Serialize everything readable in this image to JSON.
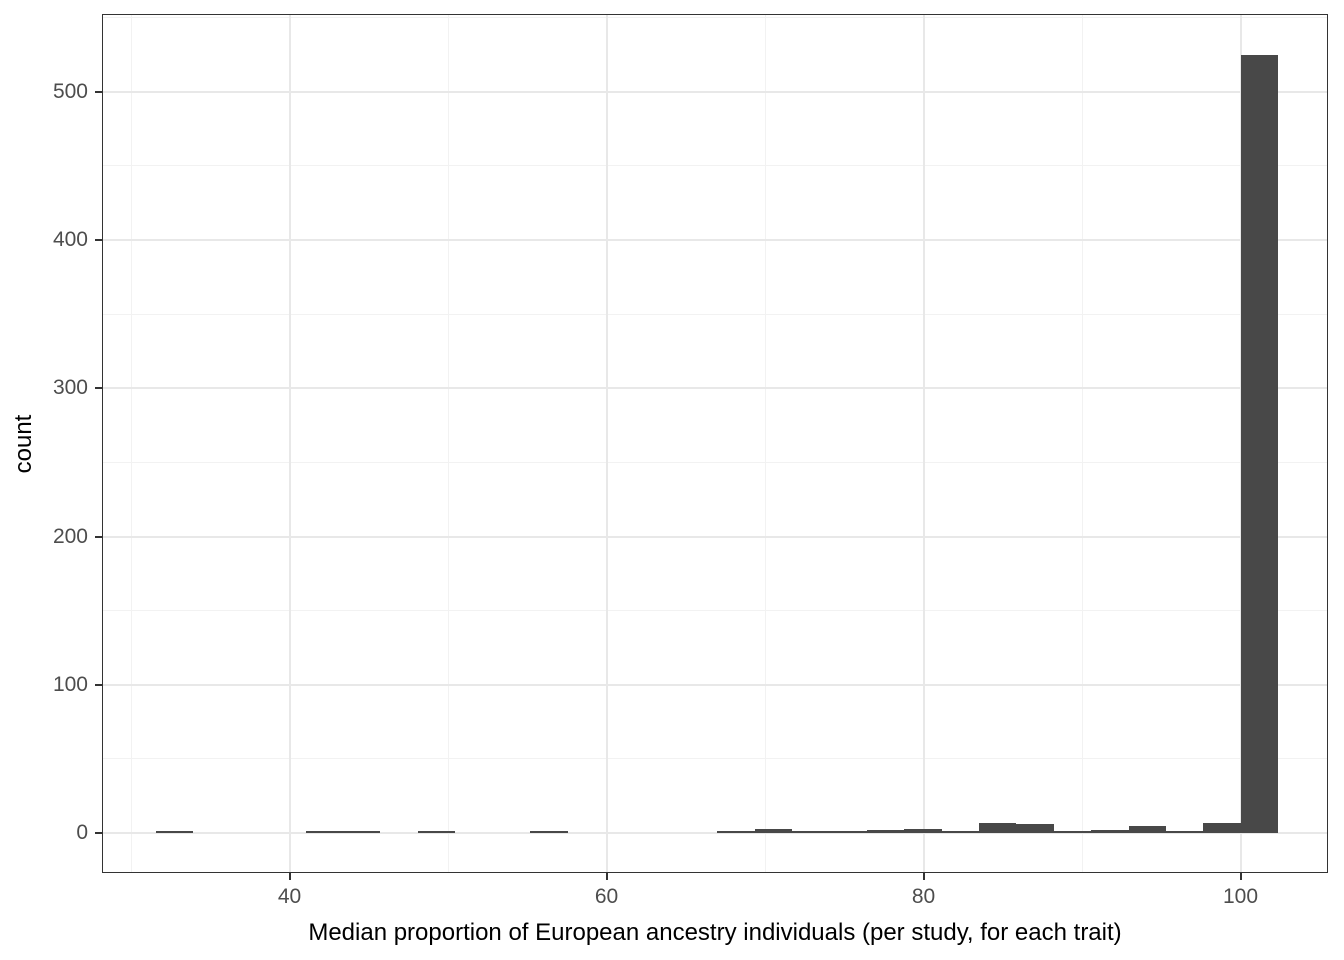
{
  "figure": {
    "kind": "histogram-plot",
    "background": "#ffffff"
  },
  "chart_data": {
    "type": "bar",
    "subtype": "histogram",
    "title": "",
    "xlabel": "Median proportion of European ancestry individuals (per study, for each trait)",
    "ylabel": "count",
    "legend": "none",
    "grid": true,
    "xlim": [
      28.17,
      105.52
    ],
    "ylim": [
      -27,
      552.5
    ],
    "x_tick_values": [
      40,
      60,
      80,
      100
    ],
    "x_tick_labels": [
      "40",
      "60",
      "80",
      "100"
    ],
    "x_minor_tick_values": [
      30,
      50,
      70,
      90
    ],
    "y_tick_values": [
      0,
      100,
      200,
      300,
      400,
      500
    ],
    "y_tick_labels": [
      "0",
      "100",
      "200",
      "300",
      "400",
      "500"
    ],
    "y_minor_tick_values": [
      50,
      150,
      250,
      350,
      450,
      550
    ],
    "binwidth": 2.36,
    "bin_start": [
      31.58,
      33.94,
      36.3,
      38.66,
      41.02,
      43.38,
      45.74,
      48.1,
      50.46,
      52.82,
      55.18,
      57.54,
      59.9,
      62.26,
      64.62,
      66.98,
      69.34,
      71.7,
      74.06,
      76.42,
      78.78,
      81.14,
      83.5,
      85.86,
      88.22,
      90.58,
      92.94,
      95.3,
      97.66,
      100.02
    ],
    "counts": [
      1,
      0,
      0,
      0,
      1,
      1,
      0,
      1,
      0,
      0,
      1,
      0,
      0,
      0,
      0,
      1,
      3,
      1,
      1,
      2,
      3,
      1,
      7,
      6,
      1,
      2,
      5,
      1,
      7,
      525
    ],
    "colors": {
      "bar_fill": "#484848",
      "panel_border": "#333333",
      "grid_major": "#e8e8e8",
      "grid_minor": "#f2f2f2",
      "tick_mark": "#333333",
      "tick_label": "#4d4d4d",
      "axis_title": "#000000",
      "background": "#ffffff"
    }
  }
}
